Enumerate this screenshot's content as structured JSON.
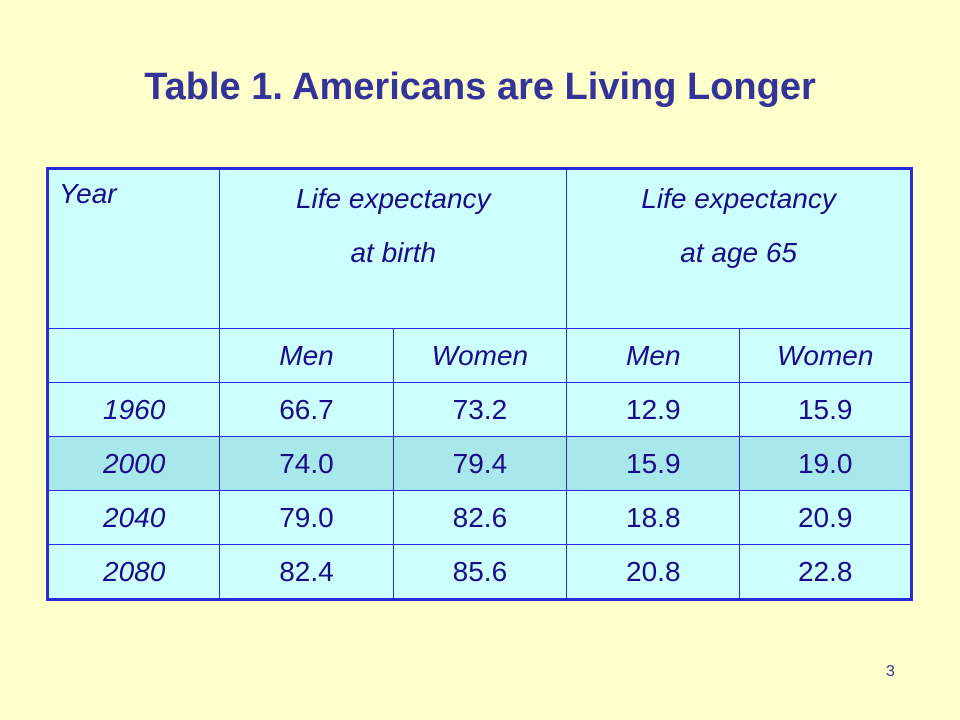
{
  "title": "Table 1.  Americans are Living Longer",
  "table": {
    "year_header": "Year",
    "group_birth": {
      "line1": "Life expectancy",
      "line2": "at birth"
    },
    "group_65": {
      "line1": "Life expectancy",
      "line2": "at age 65"
    },
    "subheaders": [
      "Men",
      "Women",
      "Men",
      "Women"
    ],
    "rows": [
      {
        "year": "1960",
        "values": [
          "66.7",
          "73.2",
          "12.9",
          "15.9"
        ]
      },
      {
        "year": "2000",
        "values": [
          "74.0",
          "79.4",
          "15.9",
          "19.0"
        ]
      },
      {
        "year": "2040",
        "values": [
          "79.0",
          "82.6",
          "18.8",
          "20.9"
        ]
      },
      {
        "year": "2080",
        "values": [
          "82.4",
          "85.6",
          "20.8",
          "22.8"
        ]
      }
    ]
  },
  "page_number": "3",
  "colors": {
    "background": "#ffffcc",
    "title": "#333399",
    "table_fill": "#ccffff",
    "table_highlight": "#a8e8ea",
    "border": "#2a2ae0"
  }
}
